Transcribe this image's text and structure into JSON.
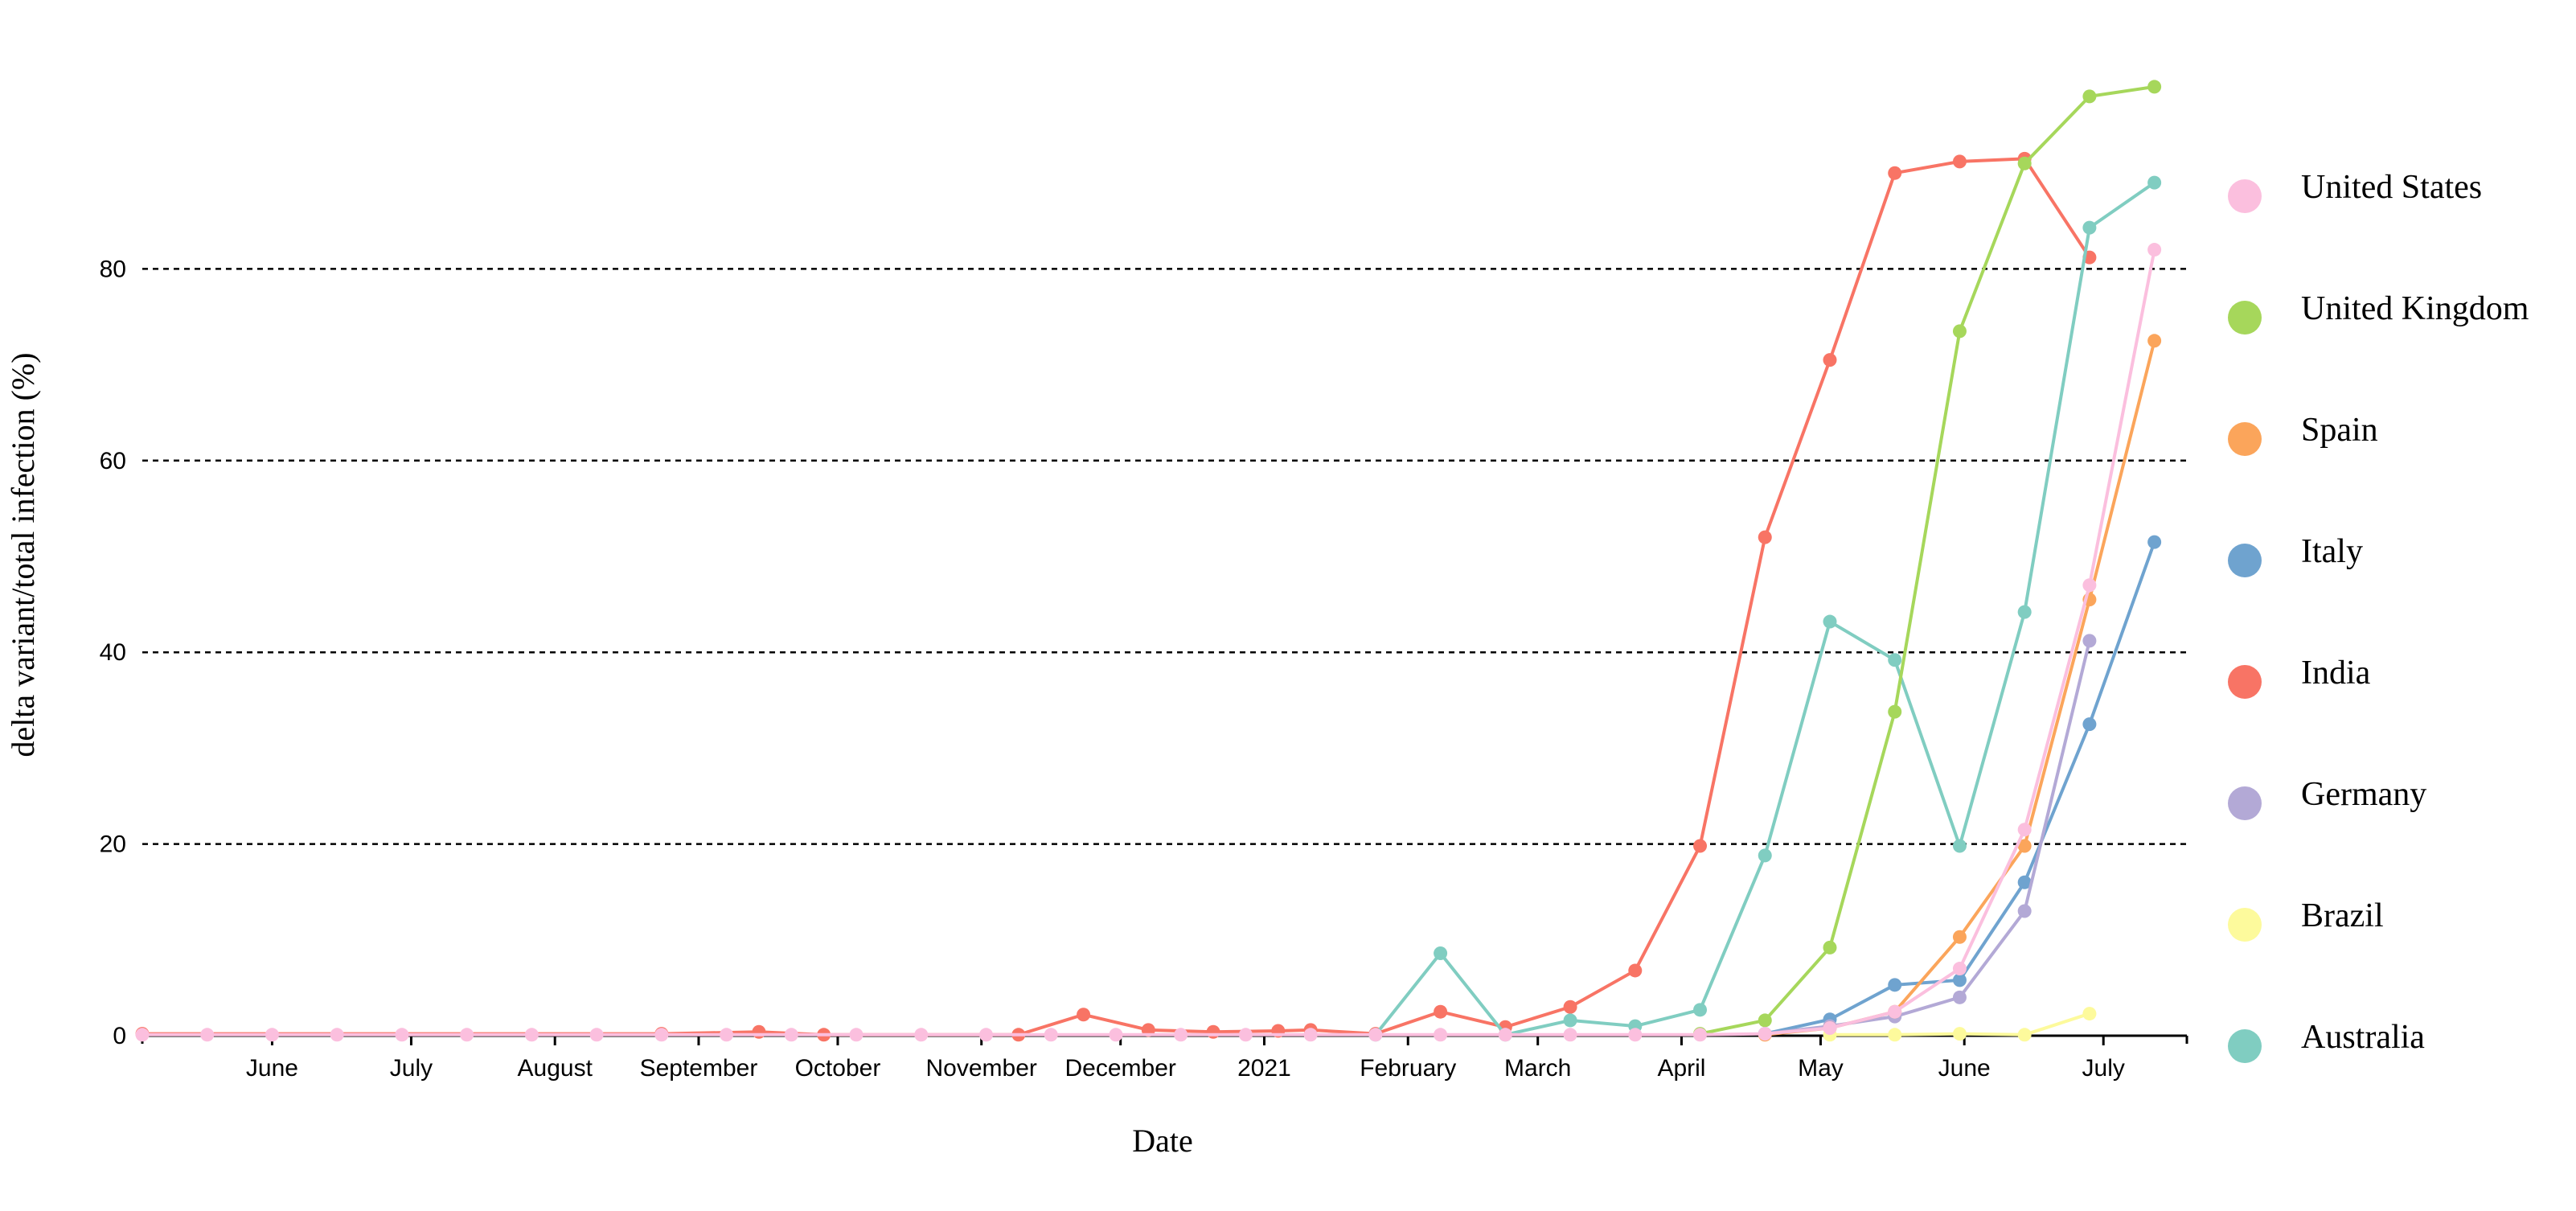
{
  "chart_data": {
    "type": "line",
    "title": "",
    "xlabel": "Date",
    "ylabel": "delta variant/total infection (%)",
    "x_range": [
      "2020-05-04",
      "2021-07-19"
    ],
    "ylim": [
      0,
      100
    ],
    "y_ticks": [
      0,
      20,
      40,
      60,
      80
    ],
    "grid": "horizontal dashed",
    "legend_placement": "right",
    "x_ticks": [
      {
        "label": "June",
        "date": "2020-06-01"
      },
      {
        "label": "July",
        "date": "2020-07-01"
      },
      {
        "label": "August",
        "date": "2020-08-01"
      },
      {
        "label": "September",
        "date": "2020-09-01"
      },
      {
        "label": "October",
        "date": "2020-10-01"
      },
      {
        "label": "November",
        "date": "2020-11-01"
      },
      {
        "label": "December",
        "date": "2020-12-01"
      },
      {
        "label": "2021",
        "date": "2021-01-01"
      },
      {
        "label": "February",
        "date": "2021-02-01"
      },
      {
        "label": "March",
        "date": "2021-03-01"
      },
      {
        "label": "April",
        "date": "2021-04-01"
      },
      {
        "label": "May",
        "date": "2021-05-01"
      },
      {
        "label": "June",
        "date": "2021-06-01"
      },
      {
        "label": "July",
        "date": "2021-07-01"
      }
    ],
    "series": [
      {
        "name": "India",
        "color": "#f87465",
        "points": [
          [
            "2020-05-04",
            0.2
          ],
          [
            "2020-08-24",
            0.2
          ],
          [
            "2020-09-14",
            0.4
          ],
          [
            "2020-09-28",
            0.1
          ],
          [
            "2020-11-09",
            0.1
          ],
          [
            "2020-11-23",
            2.2
          ],
          [
            "2020-12-07",
            0.6
          ],
          [
            "2020-12-21",
            0.4
          ],
          [
            "2021-01-04",
            0.5
          ],
          [
            "2021-01-11",
            0.6
          ],
          [
            "2021-01-25",
            0.2
          ],
          [
            "2021-02-08",
            2.5
          ],
          [
            "2021-02-22",
            0.9
          ],
          [
            "2021-03-08",
            3.0
          ],
          [
            "2021-03-22",
            6.8
          ],
          [
            "2021-04-05",
            19.8
          ],
          [
            "2021-04-19",
            52.0
          ],
          [
            "2021-05-03",
            70.5
          ],
          [
            "2021-05-17",
            90.0
          ],
          [
            "2021-05-31",
            91.2
          ],
          [
            "2021-06-14",
            91.5
          ],
          [
            "2021-06-28",
            81.2
          ]
        ]
      },
      {
        "name": "Australia",
        "color": "#80cdc1",
        "points": [
          [
            "2021-01-25",
            0.1
          ],
          [
            "2021-02-08",
            8.6
          ],
          [
            "2021-02-22",
            0.1
          ],
          [
            "2021-03-08",
            1.6
          ],
          [
            "2021-03-22",
            1.0
          ],
          [
            "2021-04-05",
            2.7
          ],
          [
            "2021-04-19",
            18.8
          ],
          [
            "2021-05-03",
            43.2
          ],
          [
            "2021-05-17",
            39.2
          ],
          [
            "2021-05-31",
            19.8
          ],
          [
            "2021-06-14",
            44.2
          ],
          [
            "2021-06-28",
            84.3
          ],
          [
            "2021-07-12",
            89.0
          ]
        ]
      },
      {
        "name": "United Kingdom",
        "color": "#a6d75b",
        "points": [
          [
            "2021-04-05",
            0.2
          ],
          [
            "2021-04-19",
            1.6
          ],
          [
            "2021-05-03",
            9.2
          ],
          [
            "2021-05-17",
            33.8
          ],
          [
            "2021-05-31",
            73.5
          ],
          [
            "2021-06-14",
            91.0
          ],
          [
            "2021-06-28",
            98.0
          ],
          [
            "2021-07-12",
            99.0
          ]
        ]
      },
      {
        "name": "Italy",
        "color": "#6fa3cf",
        "points": [
          [
            "2021-04-19",
            0.2
          ],
          [
            "2021-05-03",
            1.7
          ],
          [
            "2021-05-17",
            5.3
          ],
          [
            "2021-05-31",
            5.8
          ],
          [
            "2021-06-14",
            16.0
          ],
          [
            "2021-06-28",
            32.5
          ],
          [
            "2021-07-12",
            51.5
          ]
        ]
      },
      {
        "name": "Germany",
        "color": "#b3a9d6",
        "points": [
          [
            "2021-04-19",
            0.2
          ],
          [
            "2021-05-03",
            1.0
          ],
          [
            "2021-05-17",
            2.0
          ],
          [
            "2021-05-31",
            4.0
          ],
          [
            "2021-06-14",
            13.0
          ],
          [
            "2021-06-28",
            41.2
          ]
        ]
      },
      {
        "name": "Spain",
        "color": "#fba55b",
        "points": [
          [
            "2021-04-19",
            0.1
          ],
          [
            "2021-05-03",
            0.8
          ],
          [
            "2021-05-17",
            2.5
          ],
          [
            "2021-05-31",
            10.3
          ],
          [
            "2021-06-14",
            19.8
          ],
          [
            "2021-06-28",
            45.5
          ],
          [
            "2021-07-12",
            72.5
          ]
        ]
      },
      {
        "name": "Brazil",
        "color": "#fdfa9c",
        "points": [
          [
            "2021-05-03",
            0.1
          ],
          [
            "2021-05-17",
            0.1
          ],
          [
            "2021-05-31",
            0.2
          ],
          [
            "2021-06-14",
            0.1
          ],
          [
            "2021-06-28",
            2.3
          ]
        ]
      },
      {
        "name": "United States",
        "color": "#fbbfde",
        "points": [
          [
            "2020-05-04",
            0.1
          ],
          [
            "2020-05-18",
            0.1
          ],
          [
            "2020-06-01",
            0.1
          ],
          [
            "2020-06-15",
            0.1
          ],
          [
            "2020-06-29",
            0.1
          ],
          [
            "2020-07-13",
            0.1
          ],
          [
            "2020-07-27",
            0.1
          ],
          [
            "2020-08-10",
            0.1
          ],
          [
            "2020-08-24",
            0.1
          ],
          [
            "2020-09-07",
            0.1
          ],
          [
            "2020-09-21",
            0.1
          ],
          [
            "2020-10-05",
            0.1
          ],
          [
            "2020-10-19",
            0.1
          ],
          [
            "2020-11-02",
            0.1
          ],
          [
            "2020-11-16",
            0.1
          ],
          [
            "2020-11-30",
            0.1
          ],
          [
            "2020-12-14",
            0.1
          ],
          [
            "2020-12-28",
            0.1
          ],
          [
            "2021-01-11",
            0.1
          ],
          [
            "2021-01-25",
            0.1
          ],
          [
            "2021-02-08",
            0.1
          ],
          [
            "2021-02-22",
            0.1
          ],
          [
            "2021-03-08",
            0.1
          ],
          [
            "2021-03-22",
            0.1
          ],
          [
            "2021-04-05",
            0.1
          ],
          [
            "2021-04-19",
            0.2
          ],
          [
            "2021-05-03",
            0.8
          ],
          [
            "2021-05-17",
            2.5
          ],
          [
            "2021-05-31",
            7.0
          ],
          [
            "2021-06-14",
            21.5
          ],
          [
            "2021-06-28",
            47.0
          ],
          [
            "2021-07-12",
            82.0
          ]
        ]
      }
    ],
    "legend": [
      "United States",
      "United Kingdom",
      "Spain",
      "Italy",
      "India",
      "Germany",
      "Brazil",
      "Australia"
    ]
  }
}
